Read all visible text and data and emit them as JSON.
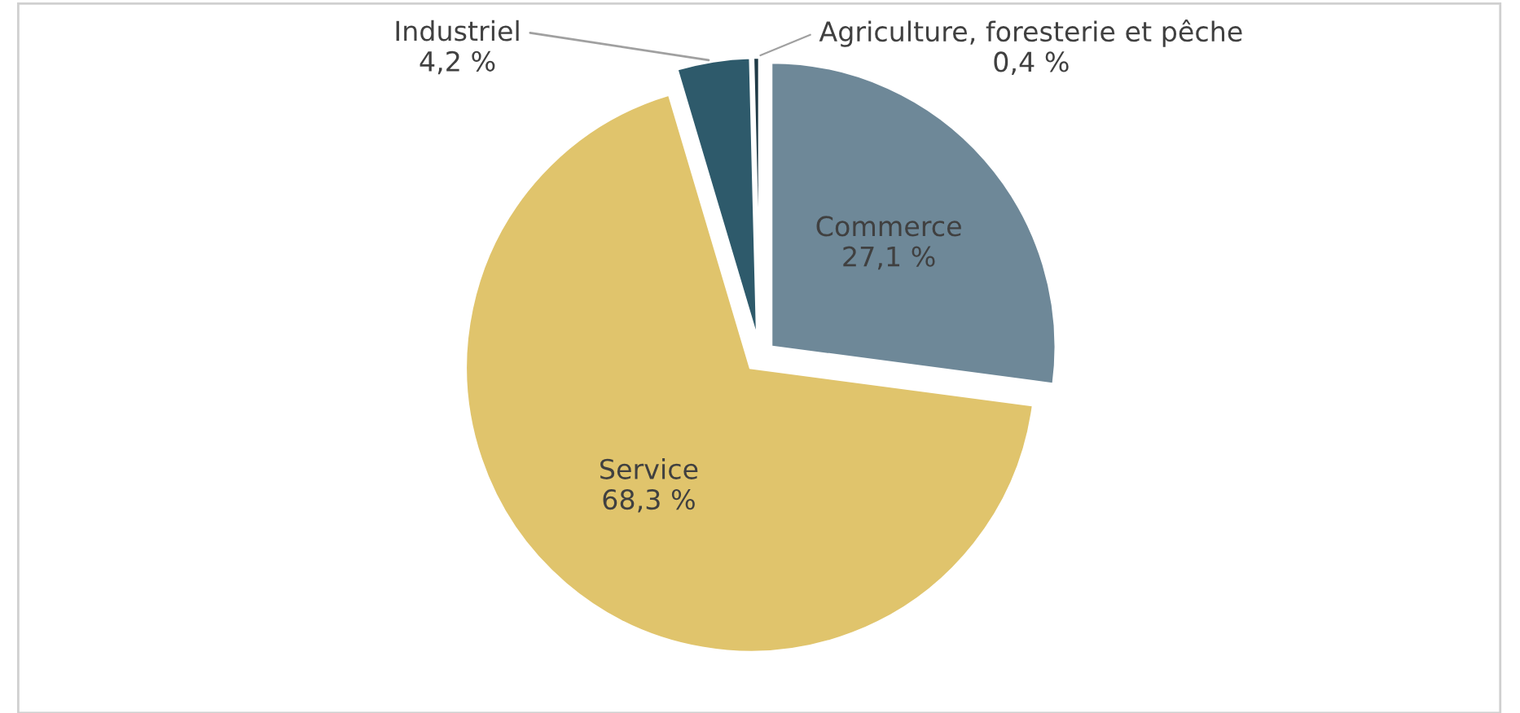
{
  "chart_data": {
    "type": "pie",
    "categories": [
      "Commerce",
      "Service",
      "Industriel",
      "Agriculture, foresterie et pêche"
    ],
    "values": [
      27.1,
      68.3,
      4.2,
      0.4
    ],
    "value_labels": [
      "27,1 %",
      "68,3 %",
      "4,2 %",
      "0,4 %"
    ],
    "colors": [
      "#6e8898",
      "#e0c46c",
      "#2e5a6b",
      "#1f3a46"
    ]
  }
}
